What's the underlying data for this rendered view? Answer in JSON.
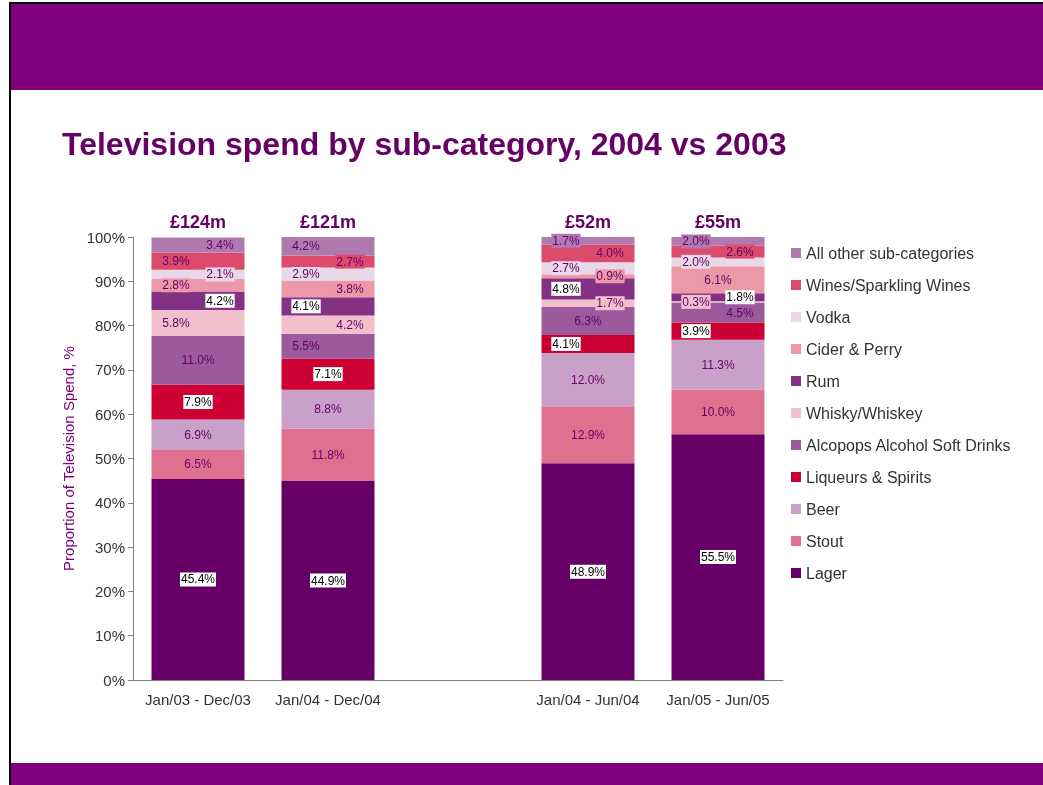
{
  "chart_data": {
    "type": "bar",
    "stacked": true,
    "title": "Television spend by sub-category, 2004 vs 2003",
    "ylabel": "Proportion of Television Spend, %",
    "categories": [
      "Jan/03 - Dec/03",
      "Jan/04 - Dec/04",
      null,
      "Jan/04 - Jun/04",
      "Jan/05 - Jun/05"
    ],
    "series": [
      {
        "name": "Lager",
        "color": "#660066",
        "values": [
          45.4,
          44.9,
          null,
          48.9,
          55.5
        ],
        "value_labels": [
          "45.4%",
          "44.9%",
          null,
          "48.9%",
          "55.5%"
        ]
      },
      {
        "name": "Stout",
        "color": "#e07090",
        "values": [
          6.5,
          11.8,
          null,
          12.9,
          10.0
        ],
        "value_labels": [
          "6.5%",
          "11.8%",
          null,
          "12.9%",
          "10.0%"
        ]
      },
      {
        "name": "Beer",
        "color": "#c9a0c8",
        "values": [
          6.9,
          8.8,
          null,
          12.0,
          11.3
        ],
        "value_labels": [
          "6.9%",
          "8.8%",
          null,
          "12.0%",
          "11.3%"
        ]
      },
      {
        "name": "Liqueurs & Spirits",
        "color": "#cc0033",
        "values": [
          7.9,
          7.1,
          null,
          4.1,
          3.9
        ],
        "value_labels": [
          "7.9%",
          "7.1%",
          null,
          "4.1%",
          "3.9%"
        ]
      },
      {
        "name": "Alcopops Alcohol Soft Drinks",
        "color": "#9b5a9b",
        "values": [
          11.0,
          5.5,
          null,
          6.3,
          4.5
        ],
        "value_labels": [
          "11.0%",
          "5.5%",
          null,
          "6.3%",
          "4.5%"
        ]
      },
      {
        "name": "Whisky/Whiskey",
        "color": "#f2c0cc",
        "values": [
          5.8,
          4.2,
          null,
          1.7,
          0.3
        ],
        "value_labels": [
          "5.8%",
          "4.2%",
          null,
          "1.7%",
          "0.3%"
        ]
      },
      {
        "name": "Rum",
        "color": "#833182",
        "values": [
          4.2,
          4.1,
          null,
          4.8,
          1.8
        ],
        "value_labels": [
          "4.2%",
          "4.1%",
          null,
          "4.8%",
          "1.8%"
        ]
      },
      {
        "name": "Cider & Perry",
        "color": "#ec98a8",
        "values": [
          2.8,
          3.8,
          null,
          0.9,
          6.1
        ],
        "value_labels": [
          "2.8%",
          "3.8%",
          null,
          "0.9%",
          "6.1%"
        ]
      },
      {
        "name": "Vodka",
        "color": "#e8d8e8",
        "values": [
          2.1,
          2.9,
          null,
          2.7,
          2.0
        ],
        "value_labels": [
          "2.1%",
          "2.9%",
          null,
          "2.7%",
          "2.0%"
        ]
      },
      {
        "name": "Wines/Sparkling Wines",
        "color": "#dc4a6c",
        "values": [
          3.9,
          2.7,
          null,
          4.0,
          2.6
        ],
        "value_labels": [
          "3.9%",
          "2.7%",
          null,
          "4.0%",
          "2.6%"
        ]
      },
      {
        "name": "All other sub-categories",
        "color": "#b07ab0",
        "values": [
          3.4,
          4.2,
          null,
          1.7,
          2.0
        ],
        "value_labels": [
          "3.4%",
          "4.2%",
          null,
          "1.7%",
          "2.0%"
        ]
      }
    ],
    "annotations": [
      {
        "text": "£124m",
        "x": "Jan/03 - Dec/03",
        "y": 100
      },
      {
        "text": "£121m",
        "x": "Jan/04 - Dec/04",
        "y": 100
      },
      {
        "text": "£52m",
        "x": "Jan/04 - Jun/04",
        "y": 100
      },
      {
        "text": "£55m",
        "x": "Jan/05 - Jun/05",
        "y": 100
      }
    ],
    "ylim": [
      0,
      100
    ],
    "yticks": [
      {
        "value": 0,
        "label": "0%"
      },
      {
        "value": 10,
        "label": "10%"
      },
      {
        "value": 20,
        "label": "20%"
      },
      {
        "value": 30,
        "label": "30%"
      },
      {
        "value": 40,
        "label": "40%"
      },
      {
        "value": 50,
        "label": "50%"
      },
      {
        "value": 60,
        "label": "60%"
      },
      {
        "value": 70,
        "label": "70%"
      },
      {
        "value": 80,
        "label": "80%"
      },
      {
        "value": 90,
        "label": "90%"
      },
      {
        "value": 100,
        "label": "100%"
      }
    ],
    "grid": false,
    "legend": "right"
  }
}
